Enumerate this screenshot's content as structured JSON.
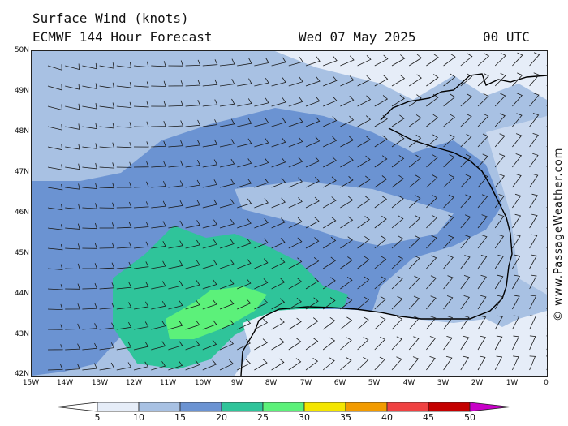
{
  "header": {
    "title": "Surface Wind (knots)",
    "model": "ECMWF 144 Hour Forecast",
    "date": "Wed 07 May 2025",
    "time": "00 UTC"
  },
  "credit": "© www.PassageWeather.com",
  "axes": {
    "lat_labels": [
      "50N",
      "49N",
      "48N",
      "47N",
      "46N",
      "45N",
      "44N",
      "43N",
      "42N"
    ],
    "lon_labels": [
      "15W",
      "14W",
      "13W",
      "12W",
      "11W",
      "10W",
      "9W",
      "8W",
      "7W",
      "6W",
      "5W",
      "4W",
      "3W",
      "2W",
      "1W",
      "0"
    ]
  },
  "legend": {
    "labels": [
      "5",
      "10",
      "15",
      "20",
      "25",
      "30",
      "35",
      "40",
      "45",
      "50"
    ],
    "colors": [
      "#e6edf8",
      "#a8c1e3",
      "#6b93d2",
      "#2fc49a",
      "#5cf17a",
      "#f4e600",
      "#f29b00",
      "#ef4242",
      "#c40000",
      "#c800c8"
    ]
  },
  "palette": {
    "calm": "#e6edf8",
    "light": "#a8c1e3",
    "moderate": "#6b93d2",
    "fresh": "#2fc49a",
    "strong": "#5cf17a",
    "coast": "#000000"
  }
}
